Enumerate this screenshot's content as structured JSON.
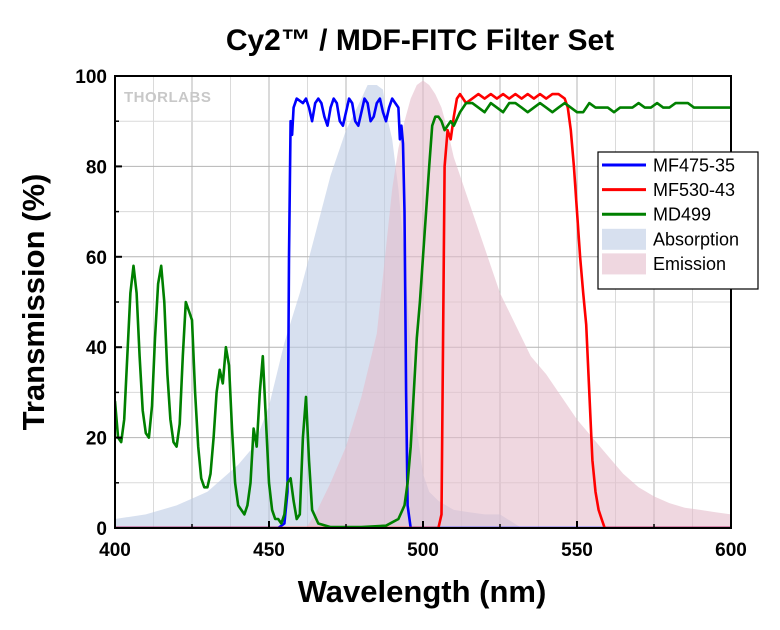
{
  "chart_data": {
    "type": "line",
    "title": "Cy2™ / MDF-FITC Filter Set",
    "xlabel": "Wavelength (nm)",
    "ylabel": "Transmission (%)",
    "xlim": [
      400,
      600
    ],
    "ylim": [
      0,
      100
    ],
    "x_ticks": [
      400,
      450,
      500,
      550,
      600
    ],
    "y_ticks": [
      0,
      20,
      40,
      60,
      80,
      100
    ],
    "grid": true,
    "legend_position": "right",
    "watermark": "THORLABS",
    "series": [
      {
        "name": "MF475-35",
        "kind": "line",
        "color": "#0000ff",
        "points": [
          [
            400,
            0
          ],
          [
            453,
            0
          ],
          [
            455,
            1
          ],
          [
            456,
            8
          ],
          [
            456.5,
            60
          ],
          [
            457,
            90
          ],
          [
            457.5,
            87
          ],
          [
            458,
            93
          ],
          [
            459,
            95
          ],
          [
            461,
            94
          ],
          [
            462,
            95
          ],
          [
            463,
            93
          ],
          [
            464,
            90
          ],
          [
            465,
            94
          ],
          [
            466,
            95
          ],
          [
            467,
            94
          ],
          [
            468,
            91
          ],
          [
            469,
            89
          ],
          [
            470,
            93
          ],
          [
            471,
            95
          ],
          [
            472,
            94
          ],
          [
            473,
            90
          ],
          [
            474,
            89
          ],
          [
            475,
            92
          ],
          [
            476,
            95
          ],
          [
            477,
            94
          ],
          [
            478,
            90
          ],
          [
            479,
            89
          ],
          [
            480,
            92
          ],
          [
            481,
            95
          ],
          [
            482,
            94
          ],
          [
            483,
            90
          ],
          [
            484,
            91
          ],
          [
            485,
            94
          ],
          [
            486,
            95
          ],
          [
            487,
            92
          ],
          [
            488,
            90
          ],
          [
            489,
            93
          ],
          [
            490,
            95
          ],
          [
            491,
            94
          ],
          [
            492,
            93
          ],
          [
            492.5,
            86
          ],
          [
            493,
            89
          ],
          [
            493.5,
            85
          ],
          [
            494,
            70
          ],
          [
            494.5,
            30
          ],
          [
            495,
            5
          ],
          [
            496,
            0
          ],
          [
            600,
            0
          ]
        ]
      },
      {
        "name": "MF530-43",
        "kind": "line",
        "color": "#ff0000",
        "points": [
          [
            400,
            0
          ],
          [
            505,
            0
          ],
          [
            506,
            3
          ],
          [
            506.5,
            40
          ],
          [
            507,
            80
          ],
          [
            507.5,
            84
          ],
          [
            508,
            88
          ],
          [
            509,
            86
          ],
          [
            510,
            91
          ],
          [
            511,
            95
          ],
          [
            512,
            96
          ],
          [
            514,
            94
          ],
          [
            516,
            95
          ],
          [
            518,
            96
          ],
          [
            520,
            95
          ],
          [
            522,
            96
          ],
          [
            524,
            95
          ],
          [
            526,
            96
          ],
          [
            528,
            95
          ],
          [
            530,
            96
          ],
          [
            532,
            95
          ],
          [
            534,
            96
          ],
          [
            536,
            95
          ],
          [
            538,
            96
          ],
          [
            540,
            95
          ],
          [
            542,
            96
          ],
          [
            544,
            96
          ],
          [
            546,
            95
          ],
          [
            547,
            93
          ],
          [
            548,
            88
          ],
          [
            549,
            80
          ],
          [
            550,
            70
          ],
          [
            551,
            60
          ],
          [
            552,
            52
          ],
          [
            553,
            45
          ],
          [
            554,
            30
          ],
          [
            555,
            15
          ],
          [
            556,
            8
          ],
          [
            557,
            4
          ],
          [
            558,
            2
          ],
          [
            559,
            0
          ],
          [
            600,
            0
          ]
        ]
      },
      {
        "name": "MD499",
        "kind": "line",
        "color": "#008000",
        "points": [
          [
            400,
            28
          ],
          [
            401,
            20
          ],
          [
            402,
            19
          ],
          [
            403,
            24
          ],
          [
            404,
            38
          ],
          [
            405,
            52
          ],
          [
            406,
            58
          ],
          [
            407,
            52
          ],
          [
            408,
            38
          ],
          [
            409,
            26
          ],
          [
            410,
            21
          ],
          [
            411,
            20
          ],
          [
            412,
            27
          ],
          [
            413,
            42
          ],
          [
            414,
            54
          ],
          [
            415,
            58
          ],
          [
            416,
            50
          ],
          [
            417,
            34
          ],
          [
            418,
            24
          ],
          [
            419,
            19
          ],
          [
            420,
            18
          ],
          [
            421,
            23
          ],
          [
            422,
            38
          ],
          [
            423,
            50
          ],
          [
            424,
            48
          ],
          [
            425,
            46
          ],
          [
            426,
            30
          ],
          [
            427,
            18
          ],
          [
            428,
            11
          ],
          [
            429,
            9
          ],
          [
            430,
            9
          ],
          [
            431,
            12
          ],
          [
            432,
            20
          ],
          [
            433,
            30
          ],
          [
            434,
            35
          ],
          [
            435,
            32
          ],
          [
            436,
            40
          ],
          [
            437,
            36
          ],
          [
            438,
            22
          ],
          [
            439,
            10
          ],
          [
            440,
            5
          ],
          [
            441,
            4
          ],
          [
            442,
            3
          ],
          [
            443,
            5
          ],
          [
            444,
            10
          ],
          [
            445,
            22
          ],
          [
            446,
            18
          ],
          [
            447,
            30
          ],
          [
            448,
            38
          ],
          [
            449,
            24
          ],
          [
            450,
            10
          ],
          [
            451,
            4
          ],
          [
            452,
            2
          ],
          [
            453,
            2
          ],
          [
            454,
            1
          ],
          [
            455,
            3
          ],
          [
            456,
            10
          ],
          [
            457,
            11
          ],
          [
            458,
            6
          ],
          [
            459,
            2
          ],
          [
            460,
            3
          ],
          [
            461,
            20
          ],
          [
            462,
            29
          ],
          [
            463,
            15
          ],
          [
            464,
            4
          ],
          [
            466,
            1
          ],
          [
            470,
            0.2
          ],
          [
            480,
            0.2
          ],
          [
            488,
            0.5
          ],
          [
            492,
            2
          ],
          [
            494,
            5
          ],
          [
            495,
            10
          ],
          [
            496,
            18
          ],
          [
            497,
            30
          ],
          [
            498,
            42
          ],
          [
            499,
            50
          ],
          [
            500,
            60
          ],
          [
            501,
            70
          ],
          [
            502,
            80
          ],
          [
            503,
            89
          ],
          [
            504,
            91
          ],
          [
            505,
            91
          ],
          [
            506,
            90
          ],
          [
            507,
            88
          ],
          [
            508,
            89
          ],
          [
            509,
            90
          ],
          [
            510,
            89
          ],
          [
            512,
            92
          ],
          [
            514,
            94
          ],
          [
            516,
            94
          ],
          [
            518,
            93
          ],
          [
            520,
            92
          ],
          [
            522,
            94
          ],
          [
            524,
            93
          ],
          [
            526,
            92
          ],
          [
            528,
            94
          ],
          [
            530,
            94
          ],
          [
            532,
            93
          ],
          [
            534,
            92
          ],
          [
            536,
            93
          ],
          [
            538,
            94
          ],
          [
            540,
            93
          ],
          [
            542,
            92
          ],
          [
            544,
            93
          ],
          [
            546,
            94
          ],
          [
            548,
            93
          ],
          [
            550,
            92
          ],
          [
            552,
            92
          ],
          [
            554,
            94
          ],
          [
            556,
            93
          ],
          [
            558,
            93
          ],
          [
            560,
            93
          ],
          [
            562,
            92
          ],
          [
            564,
            93
          ],
          [
            566,
            93
          ],
          [
            568,
            93
          ],
          [
            570,
            94
          ],
          [
            572,
            93
          ],
          [
            574,
            93
          ],
          [
            576,
            94
          ],
          [
            578,
            93
          ],
          [
            580,
            93
          ],
          [
            582,
            94
          ],
          [
            584,
            94
          ],
          [
            586,
            94
          ],
          [
            588,
            93
          ],
          [
            590,
            93
          ],
          [
            592,
            93
          ],
          [
            594,
            93
          ],
          [
            596,
            93
          ],
          [
            598,
            93
          ],
          [
            600,
            93
          ]
        ]
      },
      {
        "name": "Absorption",
        "kind": "area",
        "color": "#bccbe5",
        "opacity": 0.6,
        "points": [
          [
            400,
            2
          ],
          [
            410,
            3
          ],
          [
            420,
            5
          ],
          [
            425,
            6.5
          ],
          [
            430,
            8
          ],
          [
            435,
            11
          ],
          [
            440,
            14
          ],
          [
            445,
            18
          ],
          [
            450,
            27
          ],
          [
            455,
            41
          ],
          [
            460,
            52
          ],
          [
            465,
            65
          ],
          [
            470,
            78
          ],
          [
            475,
            88
          ],
          [
            480,
            95
          ],
          [
            482,
            98
          ],
          [
            485,
            98
          ],
          [
            487,
            97
          ],
          [
            488,
            92
          ],
          [
            490,
            86
          ],
          [
            492,
            75
          ],
          [
            494,
            60
          ],
          [
            496,
            40
          ],
          [
            498,
            22
          ],
          [
            500,
            12
          ],
          [
            502,
            8
          ],
          [
            505,
            6
          ],
          [
            510,
            4
          ],
          [
            515,
            3.5
          ],
          [
            520,
            3
          ],
          [
            525,
            3
          ],
          [
            532,
            0
          ]
        ]
      },
      {
        "name": "Emission",
        "kind": "area",
        "color": "#e5bccb",
        "opacity": 0.6,
        "points": [
          [
            462,
            0
          ],
          [
            465,
            3
          ],
          [
            470,
            10
          ],
          [
            475,
            18
          ],
          [
            480,
            29
          ],
          [
            485,
            43
          ],
          [
            488,
            62
          ],
          [
            490,
            75
          ],
          [
            492,
            84
          ],
          [
            494,
            90
          ],
          [
            496,
            95
          ],
          [
            498,
            98
          ],
          [
            500,
            99
          ],
          [
            502,
            98
          ],
          [
            504,
            96
          ],
          [
            506,
            93
          ],
          [
            508,
            88
          ],
          [
            510,
            82
          ],
          [
            512,
            78
          ],
          [
            515,
            72
          ],
          [
            520,
            62
          ],
          [
            525,
            52
          ],
          [
            530,
            45
          ],
          [
            535,
            38
          ],
          [
            540,
            34
          ],
          [
            545,
            29
          ],
          [
            550,
            24
          ],
          [
            555,
            20
          ],
          [
            560,
            16
          ],
          [
            565,
            12
          ],
          [
            570,
            9
          ],
          [
            575,
            7
          ],
          [
            580,
            5.5
          ],
          [
            585,
            4.5
          ],
          [
            590,
            4
          ],
          [
            595,
            3.5
          ],
          [
            600,
            3
          ],
          [
            600,
            0
          ]
        ]
      }
    ]
  }
}
